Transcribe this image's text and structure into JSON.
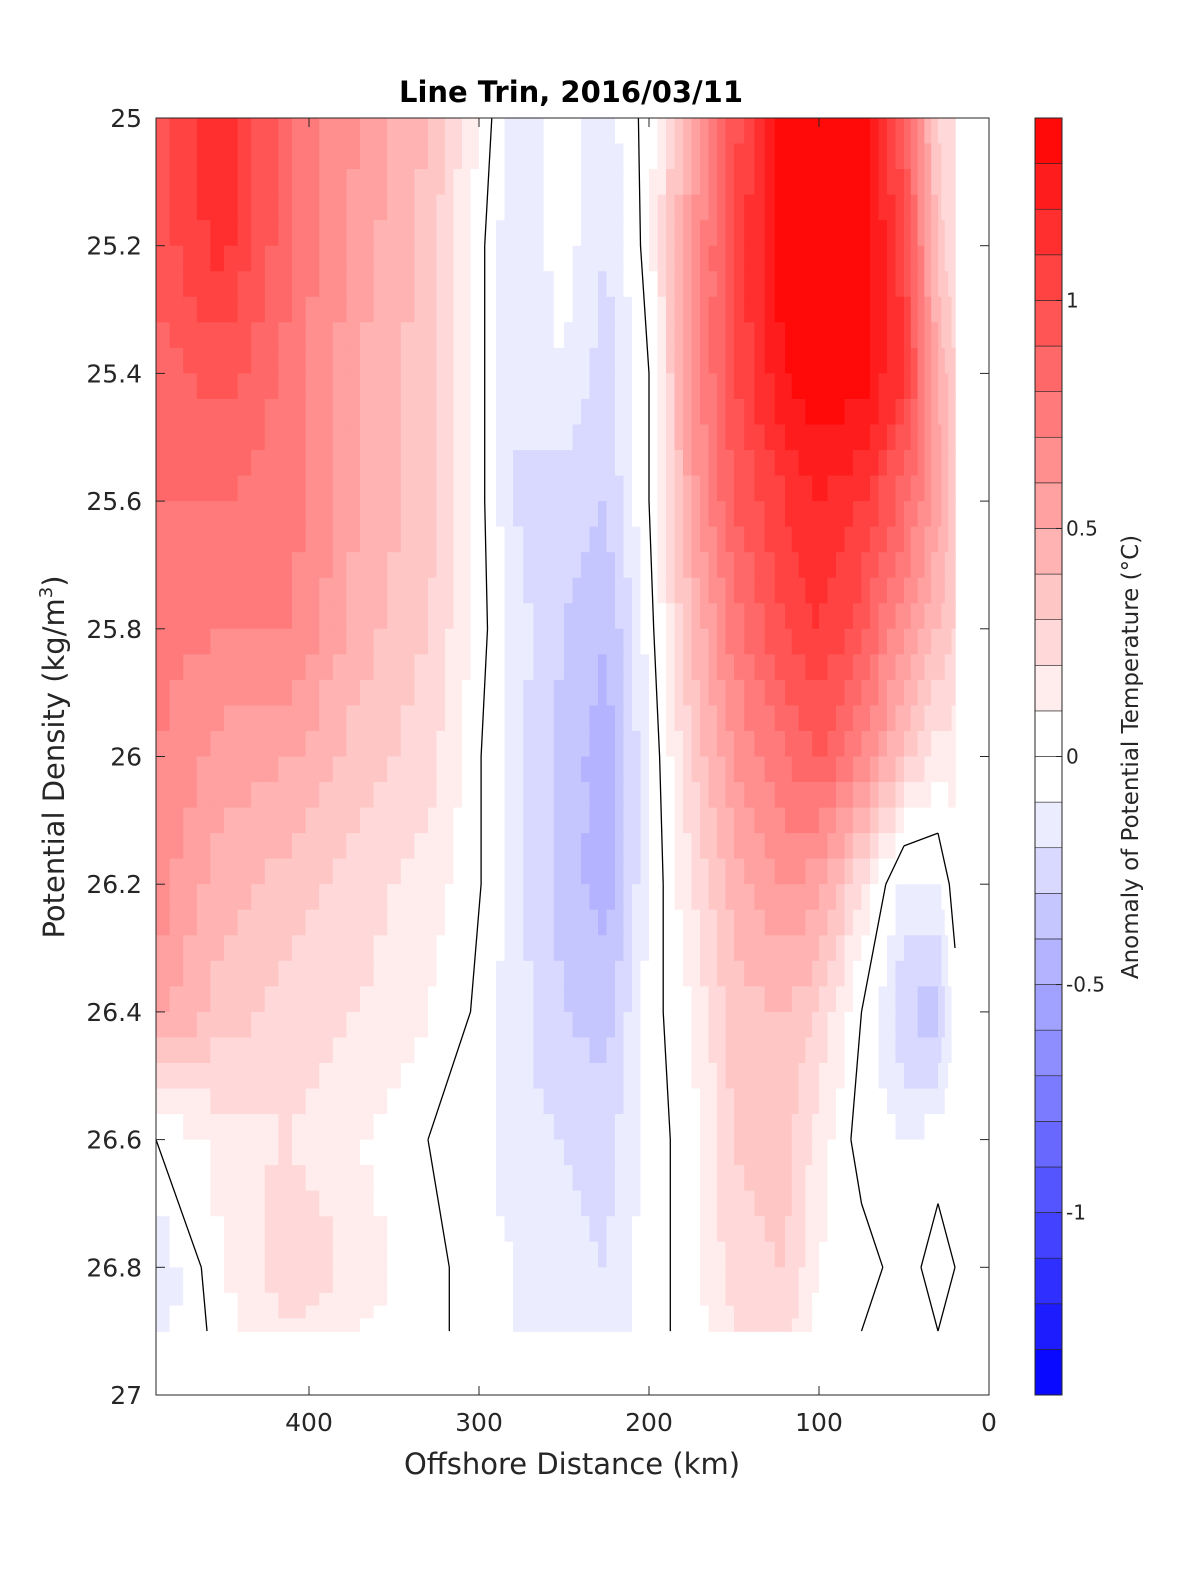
{
  "chart_data": {
    "type": "heatmap",
    "subtype": "filled-contour",
    "title": "Line Trin, 2016/03/11",
    "xlabel": "Offshore Distance (km)",
    "ylabel_main": "Potential Density (kg/m",
    "ylabel_sup": "3",
    "ylabel_close": ")",
    "colorbar_label": "Anomaly of Potential Temperature (°C)",
    "xlim": [
      490,
      0
    ],
    "x_reversed": true,
    "ylim": [
      25,
      27
    ],
    "y_reversed": true,
    "x_ticks": [
      400,
      300,
      200,
      100,
      0
    ],
    "y_ticks": [
      25,
      25.2,
      25.4,
      25.6,
      25.8,
      26,
      26.2,
      26.4,
      26.6,
      26.8,
      27
    ],
    "colorbar_range": [
      -1.4,
      1.4
    ],
    "colorbar_ticks": [
      -1,
      -0.5,
      0,
      0.5,
      1
    ],
    "colorbar_step": 0.1,
    "colors": {
      "positive": "#ff0000",
      "negative": "#0000ff",
      "zero": "#ffffff",
      "contour": "#000000"
    },
    "grid": false,
    "x": [
      490,
      450,
      410,
      370,
      330,
      305,
      280,
      250,
      225,
      200,
      175,
      150,
      120,
      100,
      75,
      50,
      30,
      20
    ],
    "y": [
      25.0,
      25.2,
      25.4,
      25.6,
      25.8,
      26.0,
      26.2,
      26.4,
      26.6,
      26.8,
      26.9
    ],
    "z": [
      [
        0.95,
        1.2,
        0.8,
        0.6,
        0.4,
        0.15,
        -0.15,
        -0.05,
        -0.15,
        0.05,
        0.5,
        0.95,
        1.35,
        1.4,
        1.35,
        0.9,
        0.3,
        0.2
      ],
      [
        0.95,
        1.15,
        0.8,
        0.55,
        0.35,
        0.1,
        -0.2,
        -0.05,
        -0.2,
        0.05,
        0.6,
        1.0,
        1.4,
        1.4,
        1.4,
        1.05,
        0.35,
        0.2
      ],
      [
        0.85,
        0.95,
        0.75,
        0.5,
        0.35,
        0.1,
        -0.2,
        -0.1,
        -0.25,
        0.0,
        0.6,
        1.0,
        1.3,
        1.4,
        1.35,
        1.1,
        0.5,
        0.3
      ],
      [
        0.8,
        0.8,
        0.75,
        0.5,
        0.35,
        0.1,
        -0.2,
        -0.25,
        -0.3,
        0.0,
        0.55,
        0.9,
        1.1,
        1.2,
        1.1,
        0.85,
        0.55,
        0.3
      ],
      [
        0.75,
        0.7,
        0.7,
        0.45,
        0.3,
        0.1,
        -0.15,
        -0.3,
        -0.4,
        -0.05,
        0.4,
        0.75,
        1.0,
        1.1,
        0.95,
        0.6,
        0.4,
        0.3
      ],
      [
        0.7,
        0.55,
        0.5,
        0.35,
        0.25,
        0.05,
        -0.15,
        -0.35,
        -0.45,
        -0.1,
        0.3,
        0.6,
        0.8,
        0.9,
        0.7,
        0.35,
        0.15,
        0.15
      ],
      [
        0.65,
        0.45,
        0.35,
        0.25,
        0.15,
        0.05,
        -0.15,
        -0.35,
        -0.45,
        -0.1,
        0.2,
        0.45,
        0.6,
        0.55,
        0.2,
        -0.15,
        -0.1,
        0.05
      ],
      [
        0.55,
        0.35,
        0.25,
        0.2,
        0.1,
        0.0,
        -0.15,
        -0.3,
        -0.35,
        -0.05,
        0.1,
        0.35,
        0.4,
        0.3,
        0.0,
        -0.3,
        -0.35,
        -0.05
      ],
      [
        0.0,
        0.15,
        0.2,
        0.1,
        0.0,
        -0.05,
        -0.15,
        -0.2,
        -0.25,
        -0.05,
        0.05,
        0.3,
        0.35,
        0.15,
        -0.05,
        -0.1,
        -0.05,
        0.0
      ],
      [
        -0.2,
        0.1,
        0.3,
        0.15,
        0.05,
        -0.05,
        -0.1,
        -0.15,
        -0.2,
        -0.05,
        0.05,
        0.25,
        0.3,
        0.1,
        0.05,
        -0.05,
        0.05,
        0.0
      ],
      [
        -0.15,
        0.05,
        0.2,
        0.1,
        0.05,
        -0.05,
        -0.1,
        -0.15,
        -0.15,
        -0.05,
        0.05,
        0.2,
        0.25,
        0.05,
        0.0,
        -0.05,
        0.0,
        0.0
      ]
    ]
  }
}
